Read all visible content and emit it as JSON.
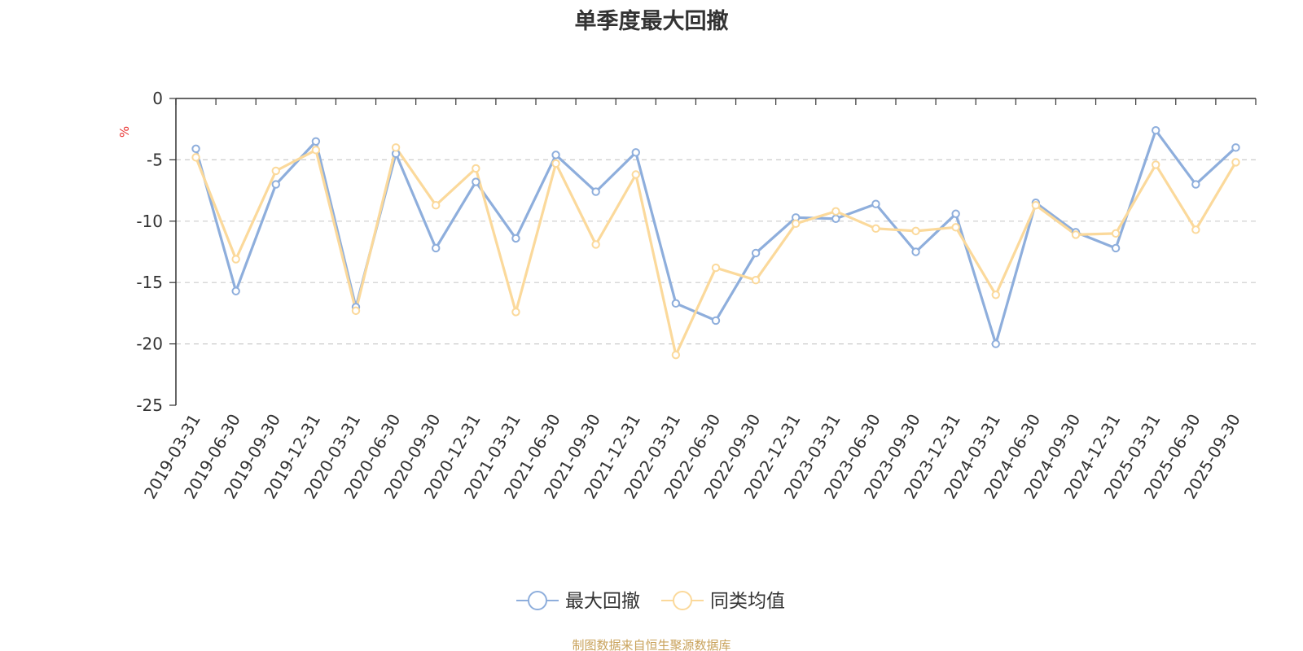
{
  "chart_data": {
    "type": "line",
    "title": "单季度最大回撤",
    "ylabel": "%",
    "ylim": [
      -25,
      0
    ],
    "yticks": [
      0,
      -5,
      -10,
      -15,
      -20,
      -25
    ],
    "ytick_labels": [
      "0",
      "-5",
      "-10",
      "-15",
      "-20",
      "-25"
    ],
    "grid": "y-dashed",
    "legend_position": "bottom-center",
    "categories": [
      "2019-03-31",
      "2019-06-30",
      "2019-09-30",
      "2019-12-31",
      "2020-03-31",
      "2020-06-30",
      "2020-09-30",
      "2020-12-31",
      "2021-03-31",
      "2021-06-30",
      "2021-09-30",
      "2021-12-31",
      "2022-03-31",
      "2022-06-30",
      "2022-09-30",
      "2022-12-31",
      "2023-03-31",
      "2023-06-30",
      "2023-09-30",
      "2023-12-31",
      "2024-03-31",
      "2024-06-30",
      "2024-09-30",
      "2024-12-31",
      "2025-03-31",
      "2025-06-30",
      "2025-09-30"
    ],
    "series": [
      {
        "name": "最大回撤",
        "color": "#8eaedc",
        "values": [
          -4.1,
          -15.7,
          -7.0,
          -3.5,
          -17.0,
          -4.5,
          -12.2,
          -6.8,
          -11.4,
          -4.6,
          -7.6,
          -4.4,
          -16.7,
          -18.1,
          -12.6,
          -9.7,
          -9.8,
          -8.6,
          -12.5,
          -9.4,
          -20.0,
          -8.5,
          -10.9,
          -12.2,
          -2.6,
          -7.0,
          -4.0
        ]
      },
      {
        "name": "同类均值",
        "color": "#fbd99b",
        "values": [
          -4.8,
          -13.1,
          -5.9,
          -4.2,
          -17.3,
          -4.0,
          -8.7,
          -5.7,
          -17.4,
          -5.3,
          -11.9,
          -6.2,
          -20.9,
          -13.8,
          -14.8,
          -10.2,
          -9.2,
          -10.6,
          -10.8,
          -10.5,
          -16.0,
          -8.7,
          -11.1,
          -11.0,
          -5.4,
          -10.7,
          -5.2
        ]
      }
    ]
  },
  "footer": {
    "source": "制图数据来自恒生聚源数据库"
  }
}
